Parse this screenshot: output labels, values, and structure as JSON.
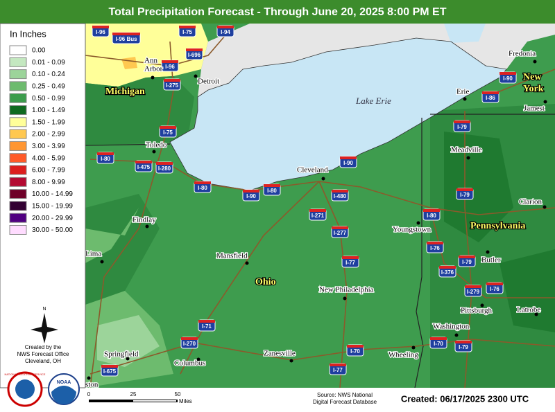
{
  "header": {
    "title": "Total Precipitation Forecast - Through June 20, 2025 8:00 PM ET"
  },
  "legend": {
    "title": "In Inches",
    "items": [
      {
        "label": "0.00",
        "color": "#ffffff"
      },
      {
        "label": "0.01 - 0.09",
        "color": "#c4e8c0"
      },
      {
        "label": "0.10 - 0.24",
        "color": "#9cd49a"
      },
      {
        "label": "0.25 - 0.49",
        "color": "#6dbb6e"
      },
      {
        "label": "0.50 - 0.99",
        "color": "#3c9c4c"
      },
      {
        "label": "1.00 - 1.49",
        "color": "#0f6a1f"
      },
      {
        "label": "1.50 - 1.99",
        "color": "#ffff99"
      },
      {
        "label": "2.00 - 2.99",
        "color": "#ffc850"
      },
      {
        "label": "3.00 - 3.99",
        "color": "#ff9632"
      },
      {
        "label": "4.00 - 5.99",
        "color": "#ff5a28"
      },
      {
        "label": "6.00 - 7.99",
        "color": "#dc1e1e"
      },
      {
        "label": "8.00 - 9.99",
        "color": "#b40a32"
      },
      {
        "label": "10.00 - 14.99",
        "color": "#6e0028"
      },
      {
        "label": "15.00 - 19.99",
        "color": "#320032"
      },
      {
        "label": "20.00 - 29.99",
        "color": "#500080"
      },
      {
        "label": "30.00 - 50.00",
        "color": "#ffdcff"
      }
    ]
  },
  "credit": {
    "lines": [
      "Created by the",
      "NWS Forecast Office",
      "Cleveland, OH"
    ],
    "compass": "N",
    "nws_logo": "NATIONAL WEATHER SERVICE",
    "noaa_logo": "NOAA"
  },
  "map": {
    "lake": "Lake Erie",
    "states": [
      {
        "lines": [
          "Michigan"
        ]
      },
      {
        "lines": [
          "Ohio"
        ]
      },
      {
        "lines": [
          "Pennsylvania"
        ]
      },
      {
        "lines": [
          "New",
          "York"
        ]
      }
    ],
    "cities": [
      {
        "lines": [
          "Ann",
          "Arbor"
        ]
      },
      {
        "lines": [
          "Detroit"
        ]
      },
      {
        "lines": [
          "Toledo"
        ]
      },
      {
        "lines": [
          "Cleveland"
        ]
      },
      {
        "lines": [
          "Findlay"
        ]
      },
      {
        "lines": [
          "Lima"
        ]
      },
      {
        "lines": [
          "Mansfield"
        ]
      },
      {
        "lines": [
          "Youngstown"
        ]
      },
      {
        "lines": [
          "Erie"
        ]
      },
      {
        "lines": [
          "Meadville"
        ]
      },
      {
        "lines": [
          "Fredonia"
        ]
      },
      {
        "lines": [
          "Jamest"
        ]
      },
      {
        "lines": [
          "Clarion"
        ]
      },
      {
        "lines": [
          "Butler"
        ]
      },
      {
        "lines": [
          "Pittsburgh"
        ]
      },
      {
        "lines": [
          "Latrobe"
        ]
      },
      {
        "lines": [
          "Washington"
        ]
      },
      {
        "lines": [
          "New Philadelphia"
        ]
      },
      {
        "lines": [
          "Zanesville"
        ]
      },
      {
        "lines": [
          "Wheeling"
        ]
      },
      {
        "lines": [
          "Springfield"
        ]
      },
      {
        "lines": [
          "Columbus"
        ]
      },
      {
        "lines": [
          "ston"
        ]
      }
    ],
    "interstates": [
      "I-96",
      "I-96 Bus",
      "I-75",
      "I-94",
      "I-696",
      "I-96",
      "I-275",
      "I-75",
      "I-80",
      "I-475",
      "I-280",
      "I-80",
      "I-90",
      "I-80",
      "I-90",
      "I-480",
      "I-271",
      "I-277",
      "I-77",
      "I-80",
      "I-76",
      "I-79",
      "I-79",
      "I-90",
      "I-86",
      "I-79",
      "I-376",
      "I-279",
      "I-76",
      "I-70",
      "I-79",
      "I-71",
      "I-270",
      "I-70",
      "I-77",
      "I-675"
    ]
  },
  "footer": {
    "scale": [
      "0",
      "25",
      "50",
      "Miles"
    ],
    "source": [
      "Source: NWS National",
      "Digital Forecast Database"
    ],
    "created": "Created: 06/17/2025 2300 UTC"
  }
}
